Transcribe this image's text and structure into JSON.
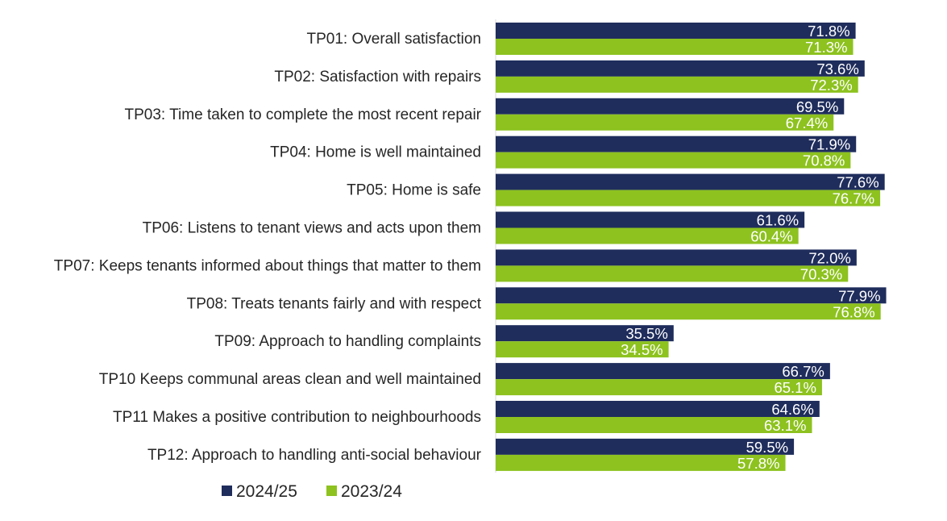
{
  "chart_data": {
    "type": "bar",
    "orientation": "horizontal",
    "categories": [
      "TP01: Overall satisfaction",
      "TP02: Satisfaction with repairs",
      "TP03: Time taken to complete the most recent repair",
      "TP04: Home is well maintained",
      "TP05: Home is safe",
      "TP06: Listens to tenant views and acts upon them",
      "TP07: Keeps tenants informed about things that matter to them",
      "TP08: Treats tenants fairly and with respect",
      "TP09: Approach to handling complaints",
      "TP10 Keeps communal areas clean and well maintained",
      "TP11 Makes a positive contribution to neighbourhoods",
      "TP12: Approach to handling anti-social behaviour"
    ],
    "series": [
      {
        "name": "2024/25",
        "color": "#1F2D5C",
        "values": [
          71.8,
          73.6,
          69.5,
          71.9,
          77.6,
          61.6,
          72.0,
          77.9,
          35.5,
          66.7,
          64.6,
          59.5
        ],
        "labels": [
          "71.8%",
          "73.6%",
          "69.5%",
          "71.9%",
          "77.6%",
          "61.6%",
          "72.0%",
          "77.9%",
          "35.5%",
          "66.7%",
          "64.6%",
          "59.5%"
        ]
      },
      {
        "name": "2023/24",
        "color": "#8DC21F",
        "values": [
          71.3,
          72.3,
          67.4,
          70.8,
          76.7,
          60.4,
          70.3,
          76.8,
          34.5,
          65.1,
          63.1,
          57.8
        ],
        "labels": [
          "71.3%",
          "72.3%",
          "67.4%",
          "70.8%",
          "76.7%",
          "60.4%",
          "70.3%",
          "76.8%",
          "34.5%",
          "65.1%",
          "63.1%",
          "57.8%"
        ]
      }
    ],
    "xlim": [
      0,
      100
    ],
    "grid": false,
    "legend_position": "bottom"
  }
}
